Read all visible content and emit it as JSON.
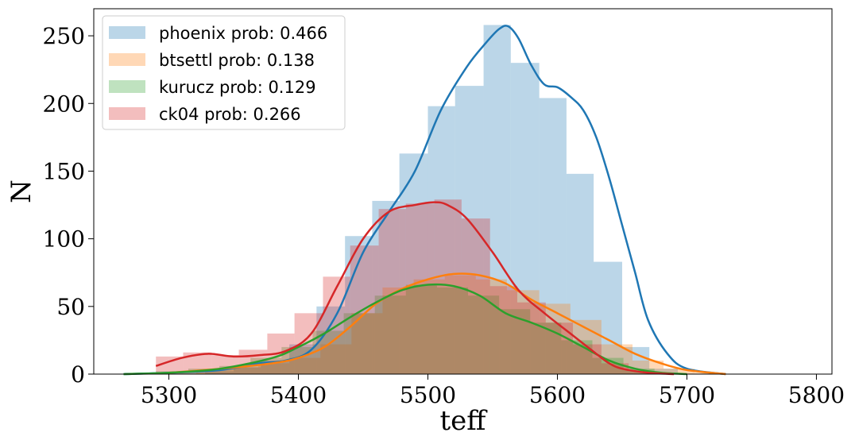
{
  "chart_data": {
    "type": "bar",
    "title": "",
    "xlabel": "teff",
    "ylabel": "N",
    "xlim": [
      5242,
      5812
    ],
    "ylim": [
      0,
      270
    ],
    "xticks": [
      5300,
      5400,
      5500,
      5600,
      5700,
      5800
    ],
    "yticks": [
      0,
      50,
      100,
      150,
      200,
      250
    ],
    "legend_position": "upper-left",
    "grid": false,
    "series": [
      {
        "name": "phoenix prob: 0.466",
        "color": "#1f77b4",
        "hist_edges": [
          5328,
          5350,
          5371,
          5393,
          5414,
          5436,
          5457,
          5478,
          5500,
          5521,
          5543,
          5564,
          5586,
          5607,
          5628,
          5650,
          5671,
          5693
        ],
        "hist_counts": [
          2,
          5,
          10,
          22,
          50,
          102,
          128,
          163,
          198,
          213,
          258,
          230,
          204,
          148,
          83,
          20,
          4
        ],
        "kde_x": [
          5265,
          5300,
          5340,
          5370,
          5390,
          5410,
          5430,
          5450,
          5470,
          5490,
          5510,
          5530,
          5545,
          5555,
          5562,
          5570,
          5580,
          5590,
          5600,
          5610,
          5620,
          5630,
          5640,
          5650,
          5660,
          5670,
          5685,
          5700,
          5730
        ],
        "kde_y": [
          0,
          1,
          3,
          8,
          10,
          18,
          45,
          90,
          120,
          150,
          195,
          227,
          245,
          255,
          257,
          248,
          228,
          214,
          212,
          205,
          195,
          175,
          145,
          110,
          75,
          40,
          15,
          4,
          0
        ]
      },
      {
        "name": "btsettl prob: 0.138",
        "color": "#ff7f0e",
        "hist_edges": [
          5321,
          5345,
          5369,
          5393,
          5417,
          5441,
          5465,
          5489,
          5513,
          5537,
          5561,
          5586,
          5610,
          5634,
          5658,
          5682,
          5706,
          5730
        ],
        "hist_counts": [
          3,
          5,
          8,
          12,
          22,
          45,
          64,
          70,
          73,
          70,
          62,
          52,
          40,
          22,
          10,
          4,
          1
        ],
        "kde_x": [
          5300,
          5340,
          5380,
          5400,
          5420,
          5440,
          5460,
          5480,
          5500,
          5520,
          5540,
          5560,
          5580,
          5600,
          5620,
          5640,
          5660,
          5680,
          5700,
          5730
        ],
        "kde_y": [
          1,
          4,
          8,
          12,
          20,
          35,
          52,
          63,
          70,
          74,
          73,
          67,
          55,
          45,
          35,
          25,
          15,
          8,
          3,
          0
        ]
      },
      {
        "name": "kurucz prob: 0.129",
        "color": "#2ca02c",
        "hist_edges": [
          5266,
          5290,
          5315,
          5339,
          5363,
          5387,
          5411,
          5435,
          5459,
          5483,
          5507,
          5531,
          5555,
          5579,
          5603,
          5627,
          5651,
          5675
        ],
        "hist_counts": [
          1,
          2,
          4,
          6,
          12,
          20,
          32,
          45,
          58,
          66,
          64,
          58,
          48,
          38,
          25,
          12,
          4
        ],
        "kde_x": [
          5265,
          5300,
          5340,
          5380,
          5400,
          5420,
          5440,
          5460,
          5480,
          5500,
          5520,
          5540,
          5560,
          5580,
          5600,
          5620,
          5640,
          5660,
          5680,
          5700
        ],
        "kde_y": [
          0,
          1,
          4,
          12,
          20,
          30,
          42,
          53,
          62,
          66,
          65,
          58,
          45,
          38,
          30,
          20,
          10,
          4,
          1,
          0
        ]
      },
      {
        "name": "ck04 prob: 0.266",
        "color": "#d62728",
        "hist_edges": [
          5290,
          5311,
          5333,
          5354,
          5376,
          5397,
          5419,
          5440,
          5462,
          5483,
          5505,
          5526,
          5548,
          5569,
          5591,
          5612,
          5634,
          5655,
          5677
        ],
        "hist_counts": [
          13,
          16,
          14,
          18,
          30,
          45,
          72,
          95,
          122,
          126,
          129,
          115,
          65,
          53,
          38,
          22,
          8,
          2
        ],
        "kde_x": [
          5290,
          5310,
          5330,
          5350,
          5370,
          5390,
          5410,
          5430,
          5450,
          5470,
          5490,
          5505,
          5515,
          5530,
          5550,
          5570,
          5590,
          5610,
          5630,
          5640,
          5650,
          5670,
          5690
        ],
        "kde_y": [
          6,
          12,
          15,
          13,
          14,
          17,
          30,
          65,
          100,
          120,
          125,
          127,
          125,
          115,
          90,
          62,
          45,
          30,
          15,
          8,
          4,
          1,
          0
        ]
      }
    ]
  }
}
